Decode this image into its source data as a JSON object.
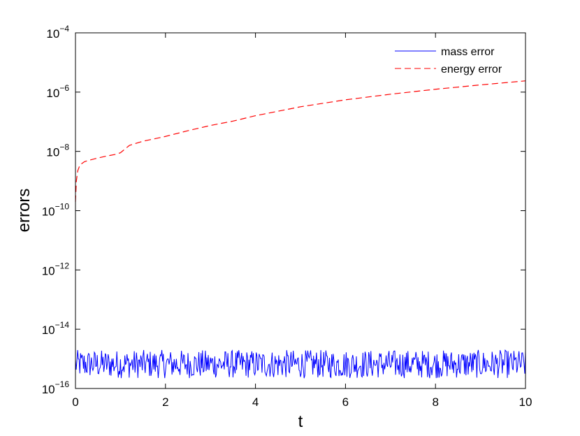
{
  "chart_data": {
    "type": "line",
    "xlabel": "t",
    "ylabel": "errors",
    "xlim": [
      0,
      10
    ],
    "ylim": [
      1e-16,
      0.0001
    ],
    "yscale": "log",
    "grid": false,
    "legend_position": "top-right",
    "x_ticks": [
      0,
      2,
      4,
      6,
      8,
      10
    ],
    "y_ticks": [
      {
        "value": 1e-16,
        "mantissa": "10",
        "exponent": "−16"
      },
      {
        "value": 1e-14,
        "mantissa": "10",
        "exponent": "−14"
      },
      {
        "value": 1e-12,
        "mantissa": "10",
        "exponent": "−12"
      },
      {
        "value": 1e-10,
        "mantissa": "10",
        "exponent": "−10"
      },
      {
        "value": 1e-08,
        "mantissa": "10",
        "exponent": "−8"
      },
      {
        "value": 1e-06,
        "mantissa": "10",
        "exponent": "−6"
      },
      {
        "value": 0.0001,
        "mantissa": "10",
        "exponent": "−4"
      }
    ],
    "series": [
      {
        "name": "mass error",
        "color": "#0000ff",
        "style": "solid",
        "x_range": [
          0,
          10
        ],
        "value_band": [
          1.5e-16,
          2e-15
        ]
      },
      {
        "name": "energy error",
        "color": "#ff0000",
        "style": "dashed",
        "x": [
          0,
          0.02,
          0.05,
          0.1,
          0.2,
          0.3,
          0.5,
          0.7,
          0.9,
          1.0,
          1.1,
          1.2,
          1.5,
          2.0,
          2.5,
          3.0,
          3.5,
          4.0,
          5.0,
          6.0,
          7.0,
          8.0,
          9.0,
          10.0
        ],
        "y": [
          2e-10,
          1e-09,
          2.2e-09,
          3.5e-09,
          4.5e-09,
          5e-09,
          6e-09,
          7e-09,
          8e-09,
          9e-09,
          1.2e-08,
          1.6e-08,
          2.2e-08,
          3.2e-08,
          5e-08,
          7.5e-08,
          1.05e-07,
          1.6e-07,
          3.2e-07,
          5.5e-07,
          8.5e-07,
          1.25e-06,
          1.75e-06,
          2.4e-06
        ]
      }
    ]
  }
}
